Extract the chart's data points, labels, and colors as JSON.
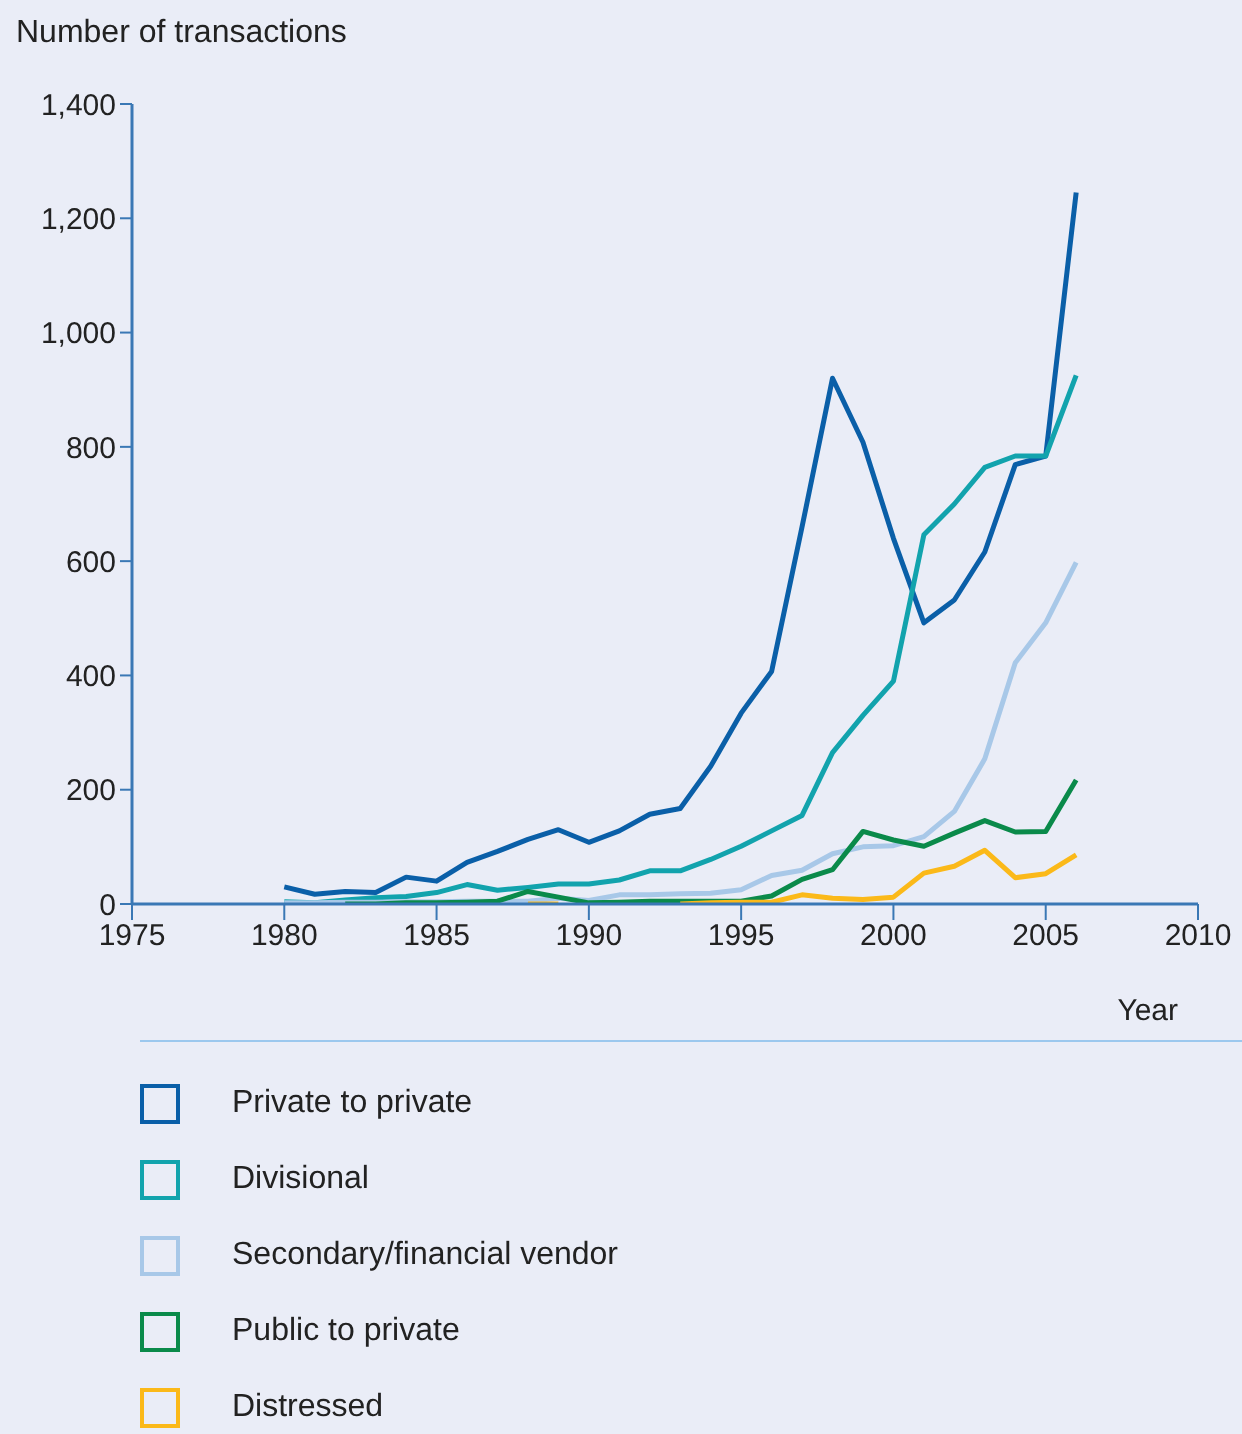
{
  "chart_data": {
    "type": "line",
    "ylabel": "Number of transactions",
    "xlabel": "Year",
    "x": [
      1980,
      1981,
      1982,
      1983,
      1984,
      1985,
      1986,
      1987,
      1988,
      1989,
      1990,
      1991,
      1992,
      1993,
      1994,
      1995,
      1996,
      1997,
      1998,
      1999,
      2000,
      2001,
      2002,
      2003,
      2004,
      2005,
      2006
    ],
    "series": [
      {
        "name": "Private to private",
        "color": "#0a5fa8",
        "values": [
          30,
          17,
          22,
          20,
          47,
          40,
          73,
          92,
          113,
          130,
          108,
          128,
          157,
          167,
          241,
          334,
          407,
          660,
          920,
          808,
          640,
          492,
          532,
          616,
          769,
          784,
          1245
        ]
      },
      {
        "name": "Divisional",
        "color": "#12a3ad",
        "values": [
          4,
          2,
          7,
          11,
          13,
          20,
          34,
          24,
          29,
          35,
          35,
          42,
          58,
          58,
          78,
          101,
          128,
          155,
          265,
          330,
          390,
          646,
          700,
          764,
          784,
          784,
          925
        ]
      },
      {
        "name": "Secondary/financial vendor",
        "color": "#a8c8e8",
        "values": [
          2,
          2,
          3,
          3,
          4,
          4,
          5,
          5,
          5,
          10,
          6,
          16,
          16,
          18,
          19,
          25,
          50,
          59,
          88,
          100,
          102,
          118,
          162,
          254,
          422,
          492,
          598
        ]
      },
      {
        "name": "Public to private",
        "color": "#0a8a4a",
        "values": [
          null,
          null,
          0,
          0,
          2,
          2,
          3,
          5,
          22,
          12,
          2,
          3,
          5,
          5,
          5,
          5,
          14,
          43,
          60,
          127,
          112,
          101,
          124,
          146,
          126,
          127,
          217
        ]
      },
      {
        "name": "Distressed",
        "color": "#fbb919",
        "values": [
          null,
          null,
          null,
          null,
          null,
          null,
          null,
          null,
          0,
          0,
          null,
          null,
          null,
          0,
          2,
          3,
          3,
          16,
          10,
          8,
          12,
          54,
          66,
          94,
          46,
          53,
          86
        ]
      }
    ],
    "xlim": [
      1975,
      2010
    ],
    "xticks": [
      1975,
      1980,
      1985,
      1990,
      1995,
      2000,
      2005,
      2010
    ],
    "ylim": [
      0,
      1400
    ],
    "yticks": [
      0,
      {
        "value": 200,
        "label": "200"
      },
      {
        "value": 400,
        "label": "400"
      },
      {
        "value": 600,
        "label": "600"
      },
      {
        "value": 800,
        "label": "800"
      },
      {
        "value": 1000,
        "label": "1,000"
      },
      {
        "value": 1200,
        "label": "1,200"
      },
      {
        "value": 1400,
        "label": "1,400"
      }
    ],
    "grid": false,
    "legend": "bottom",
    "marker": "none",
    "line_style": "solid"
  }
}
